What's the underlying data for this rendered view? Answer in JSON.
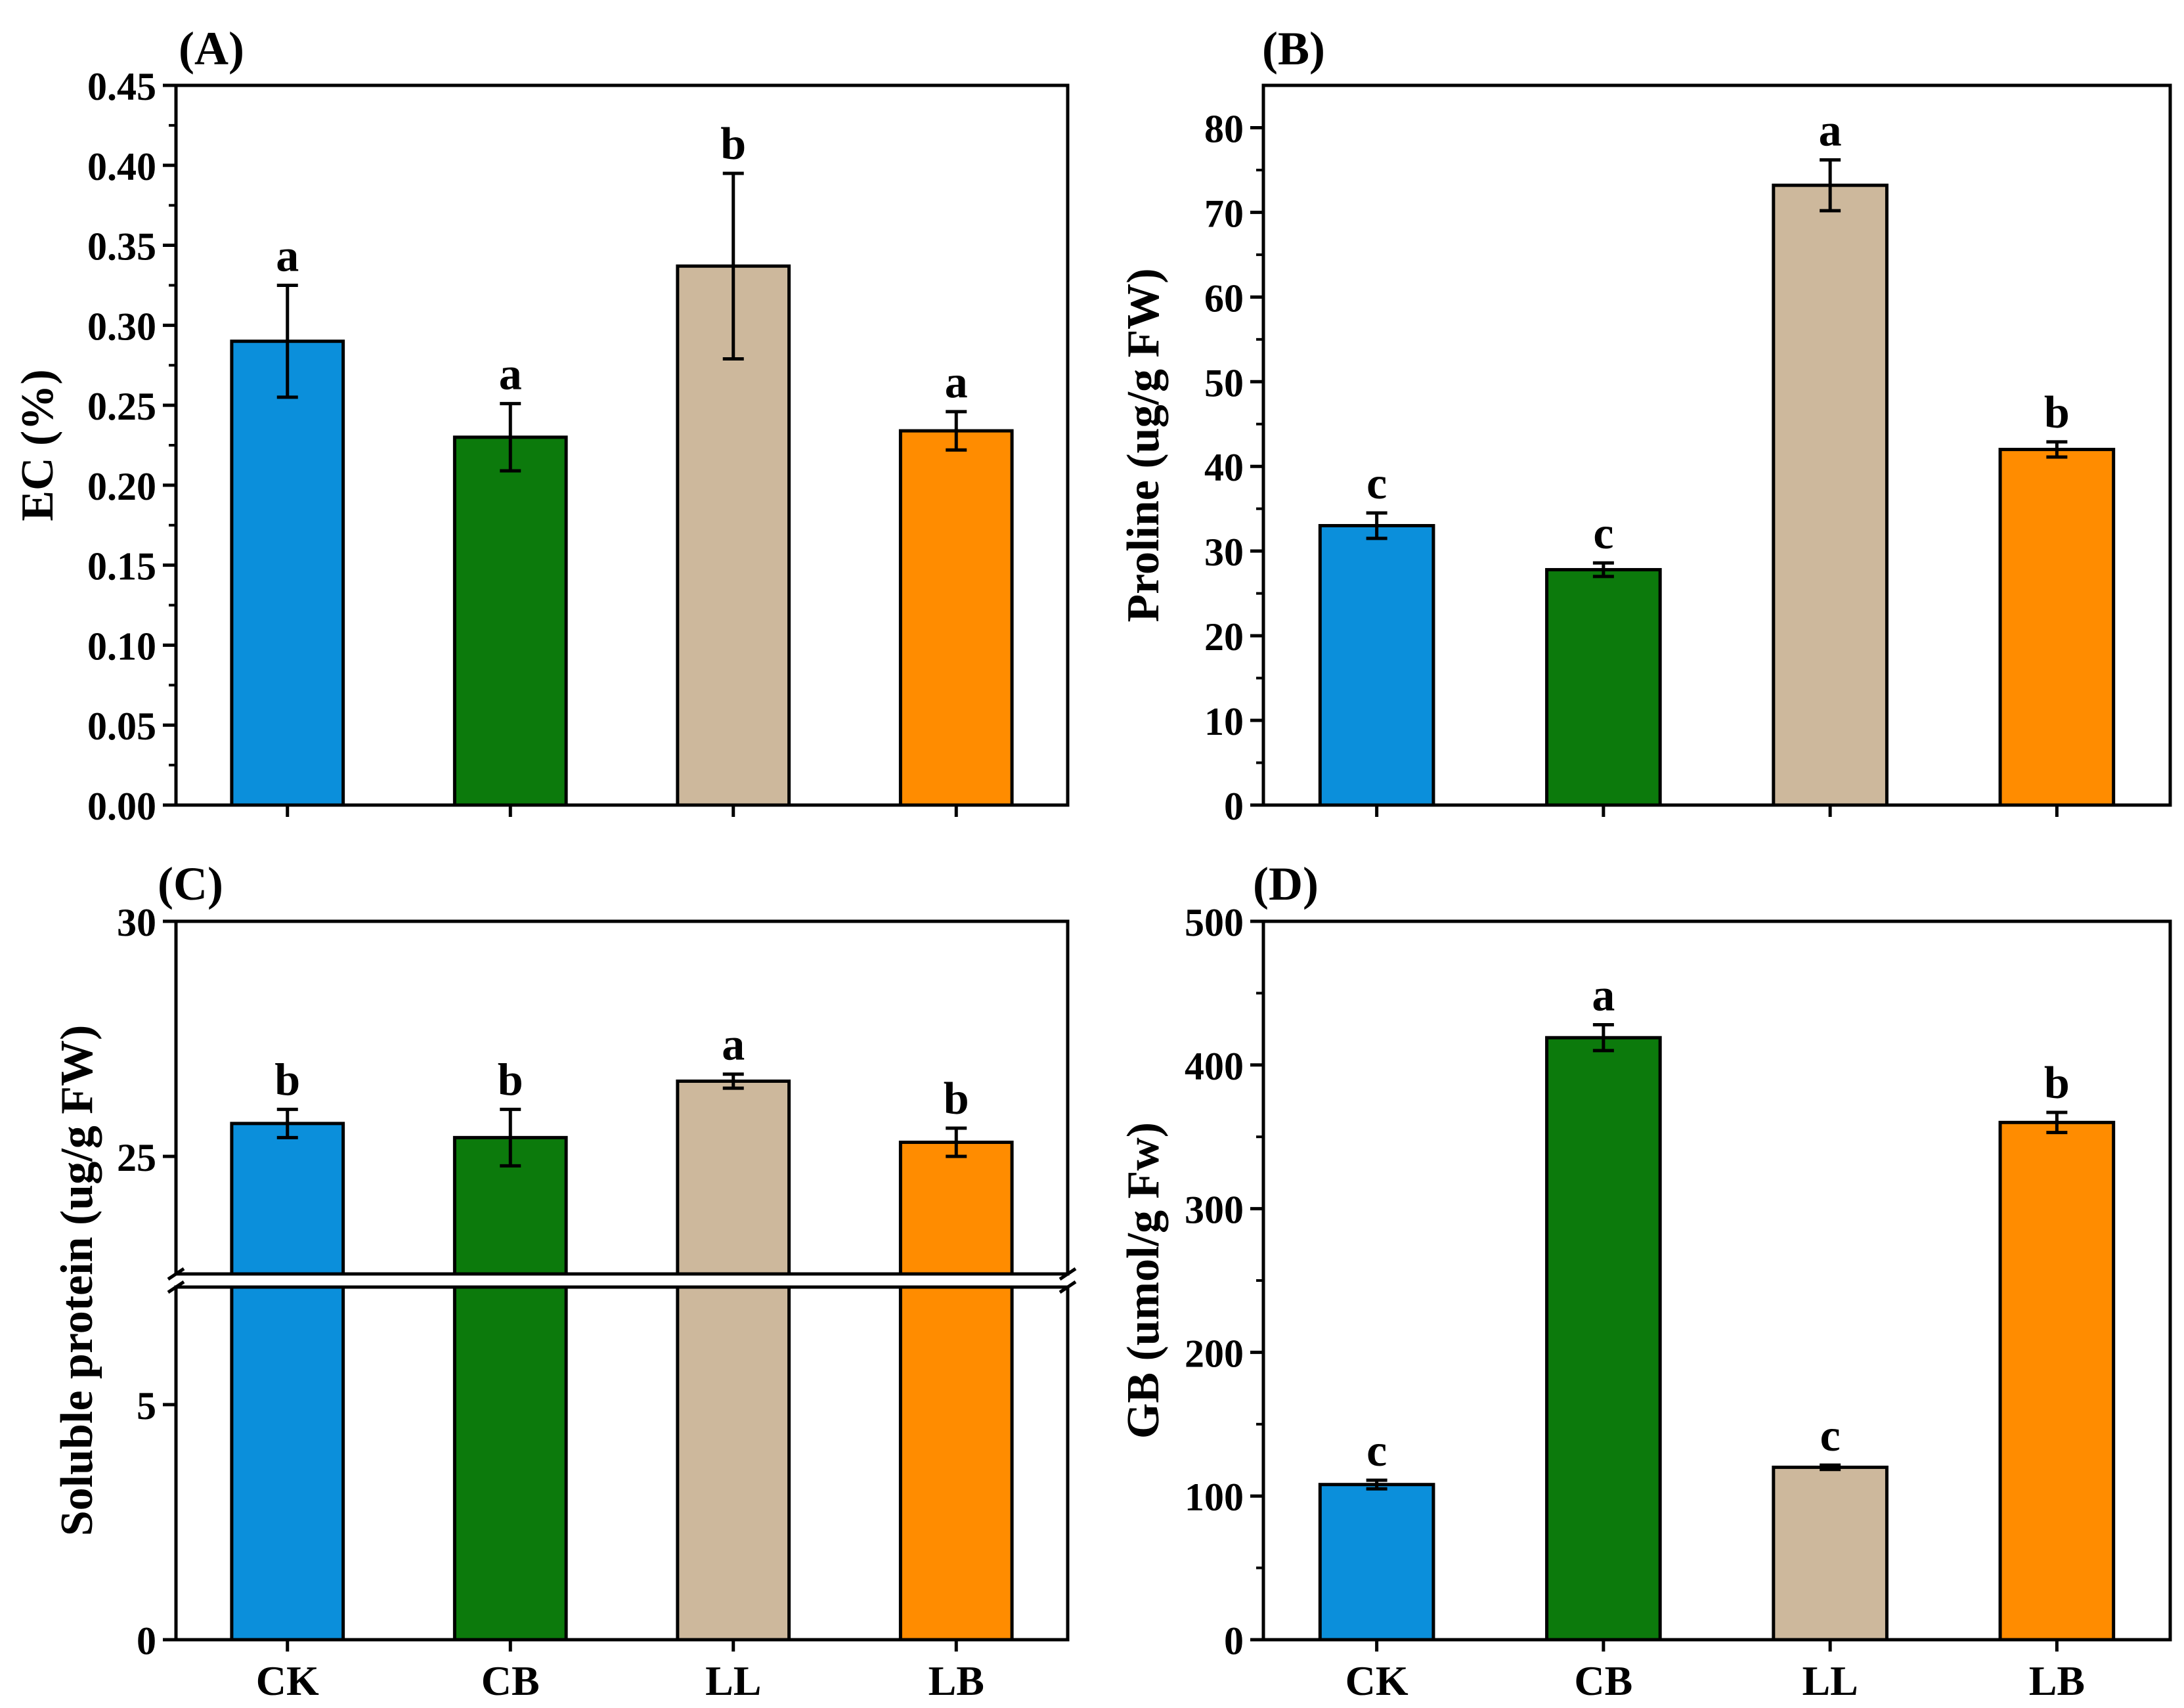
{
  "colors": {
    "CK": "#0b8fdb",
    "CB": "#0c7a0c",
    "LL": "#cdb89c",
    "LB": "#ff8c00",
    "axis": "#000000",
    "break": "#ffffff"
  },
  "chart_data": [
    {
      "id": "A",
      "panel_label": "(A)",
      "type": "bar",
      "categories": [
        "CK",
        "CB",
        "LL",
        "LB"
      ],
      "values": [
        0.29,
        0.23,
        0.337,
        0.234
      ],
      "errors": [
        0.035,
        0.021,
        0.058,
        0.012
      ],
      "letters": [
        "a",
        "a",
        "b",
        "a"
      ],
      "ylabel": "EC (%)",
      "xlabel": "",
      "ylim": [
        0,
        0.45
      ],
      "yticks": [
        0.0,
        0.05,
        0.1,
        0.15,
        0.2,
        0.25,
        0.3,
        0.35,
        0.4,
        0.45
      ],
      "ytick_labels": [
        "0.00",
        "0.05",
        "0.10",
        "0.15",
        "0.20",
        "0.25",
        "0.30",
        "0.35",
        "0.40",
        "0.45"
      ],
      "minor_yticks": [
        0.025,
        0.075,
        0.125,
        0.175,
        0.225,
        0.275,
        0.325,
        0.375,
        0.425
      ],
      "show_xtick_labels": false
    },
    {
      "id": "B",
      "panel_label": "(B)",
      "type": "bar",
      "categories": [
        "CK",
        "CB",
        "LL",
        "LB"
      ],
      "values": [
        33.0,
        27.8,
        73.2,
        42.0
      ],
      "errors": [
        1.5,
        0.8,
        3.0,
        0.9
      ],
      "letters": [
        "c",
        "c",
        "a",
        "b"
      ],
      "ylabel": "Proline (ug/g FW)",
      "xlabel": "",
      "ylim": [
        0,
        85
      ],
      "yticks": [
        0,
        10,
        20,
        30,
        40,
        50,
        60,
        70,
        80
      ],
      "ytick_labels": [
        "0",
        "10",
        "20",
        "30",
        "40",
        "50",
        "60",
        "70",
        "80"
      ],
      "minor_yticks": [
        5,
        15,
        25,
        35,
        45,
        55,
        65,
        75
      ],
      "show_xtick_labels": false
    },
    {
      "id": "C",
      "panel_label": "(C)",
      "type": "bar",
      "categories": [
        "CK",
        "CB",
        "LL",
        "LB"
      ],
      "values": [
        25.7,
        25.4,
        26.6,
        25.3
      ],
      "errors": [
        0.3,
        0.6,
        0.15,
        0.3
      ],
      "letters": [
        "b",
        "b",
        "a",
        "b"
      ],
      "ylabel": "Soluble protein (ug/g FW)",
      "xlabel": "",
      "axis_break": {
        "lower_range": [
          0,
          7.5
        ],
        "upper_range": [
          22.5,
          30
        ]
      },
      "ylim": [
        0,
        30
      ],
      "yticks": [
        0,
        5,
        25,
        30
      ],
      "ytick_labels": [
        "0",
        "5",
        "25",
        "30"
      ],
      "show_xtick_labels": true
    },
    {
      "id": "D",
      "panel_label": "(D)",
      "type": "bar",
      "categories": [
        "CK",
        "CB",
        "LL",
        "LB"
      ],
      "values": [
        108,
        419,
        120,
        360
      ],
      "errors": [
        3,
        9,
        1.5,
        7
      ],
      "letters": [
        "c",
        "a",
        "c",
        "b"
      ],
      "ylabel": "GB (umol/g Fw)",
      "xlabel": "",
      "ylim": [
        0,
        500
      ],
      "yticks": [
        0,
        100,
        200,
        300,
        400,
        500
      ],
      "ytick_labels": [
        "0",
        "100",
        "200",
        "300",
        "400",
        "500"
      ],
      "minor_yticks": [
        50,
        150,
        250,
        350,
        450
      ],
      "show_xtick_labels": true
    }
  ]
}
